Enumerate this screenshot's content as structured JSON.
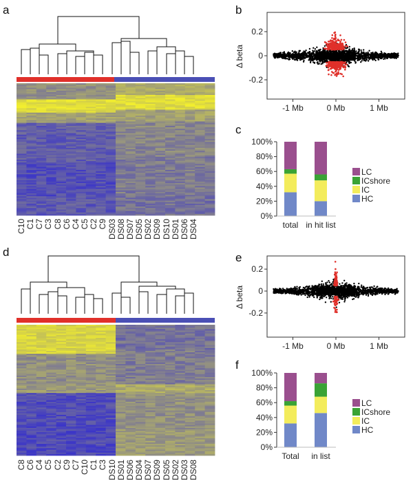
{
  "colors": {
    "red": "#e0302a",
    "blue": "#4a4fb5",
    "yellow": "#f2ec3c",
    "heat_low": "#3b35c8",
    "heat_mid": "#9c9a7a",
    "heat_high": "#f2ee2e",
    "LC": "#9a4f8e",
    "ICshore": "#3aa335",
    "IC": "#f3ec5c",
    "HC": "#7088c8"
  },
  "panels": {
    "a": {
      "label": "a",
      "samples_left": [
        "C10",
        "C1",
        "C7",
        "C3",
        "C8",
        "C6",
        "C4",
        "C5",
        "C2",
        "C9"
      ],
      "samples_right": [
        "DS03",
        "DS08",
        "DS07",
        "DS05",
        "DS02",
        "DS09",
        "DS10",
        "DS01",
        "DS06",
        "DS04"
      ]
    },
    "b": {
      "label": "b"
    },
    "c": {
      "label": "c"
    },
    "d": {
      "label": "d",
      "samples_left": [
        "C8",
        "C6",
        "C4",
        "C5",
        "C2",
        "C9",
        "C7",
        "C10",
        "C1",
        "C3"
      ],
      "samples_right": [
        "DS10",
        "DS01",
        "DS06",
        "DS04",
        "DS07",
        "DS09",
        "DS05",
        "DS02",
        "DS03",
        "DS08"
      ]
    },
    "e": {
      "label": "e"
    },
    "f": {
      "label": "f"
    }
  },
  "chart_data": [
    {
      "id": "b",
      "type": "scatter",
      "ylabel": "Δ beta",
      "x_ticks": [
        "-1 Mb",
        "0 Mb",
        "1 Mb"
      ],
      "x_tick_values": [
        -1,
        0,
        1
      ],
      "y_ticks": [
        "0.2",
        "0",
        "-0.2"
      ],
      "y_tick_values": [
        0.2,
        0,
        -0.2
      ],
      "xlim": [
        -1.6,
        1.6
      ],
      "ylim": [
        -0.36,
        0.36
      ]
    },
    {
      "id": "c",
      "type": "bar",
      "stacked": true,
      "categories": [
        "total",
        "in hit list"
      ],
      "y_ticks": [
        "100%",
        "80%",
        "60%",
        "40%",
        "20%",
        "0%"
      ],
      "ylim": [
        0,
        100
      ],
      "series": [
        {
          "name": "HC",
          "values": [
            32,
            20
          ]
        },
        {
          "name": "IC",
          "values": [
            25,
            28
          ]
        },
        {
          "name": "ICshore",
          "values": [
            6,
            8
          ]
        },
        {
          "name": "LC",
          "values": [
            37,
            44
          ]
        }
      ],
      "legend": [
        "LC",
        "ICshore",
        "IC",
        "HC"
      ]
    },
    {
      "id": "e",
      "type": "scatter",
      "ylabel": "Δ beta",
      "x_ticks": [
        "-1 Mb",
        "0 Mb",
        "1 Mb"
      ],
      "x_tick_values": [
        -1,
        0,
        1
      ],
      "y_ticks": [
        "0.2",
        "0",
        "-0.2"
      ],
      "y_tick_values": [
        0.2,
        0,
        -0.2
      ],
      "xlim": [
        -1.6,
        1.6
      ],
      "ylim": [
        -0.42,
        0.32
      ]
    },
    {
      "id": "f",
      "type": "bar",
      "stacked": true,
      "categories": [
        "Total",
        "in list"
      ],
      "y_ticks": [
        "100%",
        "80%",
        "60%",
        "40%",
        "20%",
        "0%"
      ],
      "ylim": [
        0,
        100
      ],
      "series": [
        {
          "name": "HC",
          "values": [
            32,
            46
          ]
        },
        {
          "name": "IC",
          "values": [
            24,
            22
          ]
        },
        {
          "name": "ICshore",
          "values": [
            6,
            18
          ]
        },
        {
          "name": "LC",
          "values": [
            38,
            14
          ]
        }
      ],
      "legend": [
        "LC",
        "ICshore",
        "IC",
        "HC"
      ]
    }
  ]
}
